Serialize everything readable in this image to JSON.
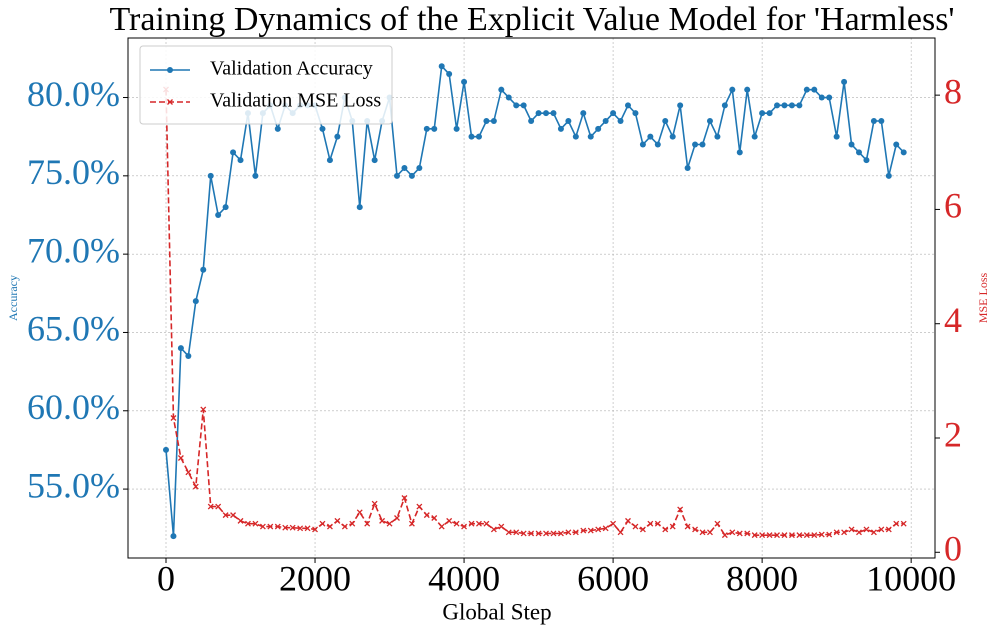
{
  "chart_data": {
    "type": "line",
    "title": "Training Dynamics of the Explicit Value Model for 'Harmless'",
    "xlabel": "Global Step",
    "ylabel": "Accuracy",
    "y2label": "MSE Loss",
    "x": [
      0,
      100,
      200,
      300,
      400,
      500,
      600,
      700,
      800,
      900,
      1000,
      1100,
      1200,
      1300,
      1400,
      1500,
      1600,
      1700,
      1800,
      1900,
      2000,
      2100,
      2200,
      2300,
      2400,
      2500,
      2600,
      2700,
      2800,
      2900,
      3000,
      3100,
      3200,
      3300,
      3400,
      3500,
      3600,
      3700,
      3800,
      3900,
      4000,
      4100,
      4200,
      4300,
      4400,
      4500,
      4600,
      4700,
      4800,
      4900,
      5000,
      5100,
      5200,
      5300,
      5400,
      5500,
      5600,
      5700,
      5800,
      5900,
      6000,
      6100,
      6200,
      6300,
      6400,
      6500,
      6600,
      6700,
      6800,
      6900,
      7000,
      7100,
      7200,
      7300,
      7400,
      7500,
      7600,
      7700,
      7800,
      7900,
      8000,
      8100,
      8200,
      8300,
      8400,
      8500,
      8600,
      8700,
      8800,
      8900,
      9000,
      9100,
      9200,
      9300,
      9400,
      9500,
      9600,
      9700,
      9800,
      9900
    ],
    "series": [
      {
        "name": "Validation Accuracy",
        "color": "#1f77b4",
        "marker": "o",
        "linestyle": "solid",
        "values": [
          57.5,
          52,
          64,
          63.5,
          67,
          69,
          75,
          72.5,
          73,
          76.5,
          76,
          79,
          75,
          79,
          79.5,
          78,
          79.5,
          79,
          79.5,
          79.5,
          79.5,
          78,
          76,
          77.5,
          80,
          78.5,
          73,
          78.5,
          76,
          78.5,
          80,
          75,
          75.5,
          75,
          75.5,
          78,
          78,
          82,
          81.5,
          78,
          81,
          77.5,
          77.5,
          78.5,
          78.5,
          80.5,
          80,
          79.5,
          79.5,
          78.5,
          79,
          79,
          79,
          78,
          78.5,
          77.5,
          79,
          77.5,
          78,
          78.5,
          79,
          78.5,
          79.5,
          79,
          77,
          77.5,
          77,
          78.5,
          77.5,
          79.5,
          75.5,
          77,
          77,
          78.5,
          77.5,
          79.5,
          80.5,
          76.5,
          80.5,
          77.5,
          79,
          79,
          79.5,
          79.5,
          79.5,
          79.5,
          80.5,
          80.5,
          80,
          80,
          77.5,
          81,
          77,
          76.5,
          76,
          78.5,
          78.5,
          75,
          77,
          76.5
        ]
      },
      {
        "name": "Validation MSE Loss",
        "color": "#d62728",
        "marker": "x",
        "linestyle": "dashed",
        "axis": "y2",
        "values": [
          8.1,
          2.35,
          1.65,
          1.4,
          1.15,
          2.5,
          0.8,
          0.8,
          0.65,
          0.65,
          0.55,
          0.5,
          0.5,
          0.45,
          0.45,
          0.45,
          0.43,
          0.43,
          0.42,
          0.42,
          0.4,
          0.5,
          0.45,
          0.55,
          0.45,
          0.5,
          0.7,
          0.5,
          0.85,
          0.55,
          0.5,
          0.6,
          0.95,
          0.5,
          0.8,
          0.65,
          0.6,
          0.45,
          0.55,
          0.5,
          0.45,
          0.5,
          0.5,
          0.5,
          0.4,
          0.45,
          0.35,
          0.35,
          0.33,
          0.33,
          0.33,
          0.33,
          0.33,
          0.33,
          0.35,
          0.35,
          0.38,
          0.38,
          0.4,
          0.42,
          0.5,
          0.35,
          0.55,
          0.45,
          0.4,
          0.5,
          0.5,
          0.4,
          0.45,
          0.75,
          0.45,
          0.4,
          0.35,
          0.35,
          0.5,
          0.3,
          0.35,
          0.33,
          0.33,
          0.3,
          0.3,
          0.3,
          0.3,
          0.3,
          0.3,
          0.3,
          0.3,
          0.3,
          0.31,
          0.31,
          0.35,
          0.35,
          0.4,
          0.35,
          0.4,
          0.35,
          0.4,
          0.4,
          0.5,
          0.5
        ]
      }
    ],
    "xlim": [
      -510,
      10320
    ],
    "xticks": [
      0,
      2000,
      4000,
      6000,
      8000,
      10000
    ],
    "ylim": [
      50.6,
      83.8
    ],
    "yticks": [
      {
        "value": 55,
        "label": "55.0%"
      },
      {
        "value": 60,
        "label": "60.0%"
      },
      {
        "value": 65,
        "label": "65.0%"
      },
      {
        "value": 70,
        "label": "70.0%"
      },
      {
        "value": 75,
        "label": "75.0%"
      },
      {
        "value": 80,
        "label": "80.0%"
      }
    ],
    "y2lim": [
      -0.1,
      9.0
    ],
    "y2ticks": [
      0,
      2,
      4,
      6,
      8
    ],
    "grid": true,
    "legend": "upper left"
  }
}
